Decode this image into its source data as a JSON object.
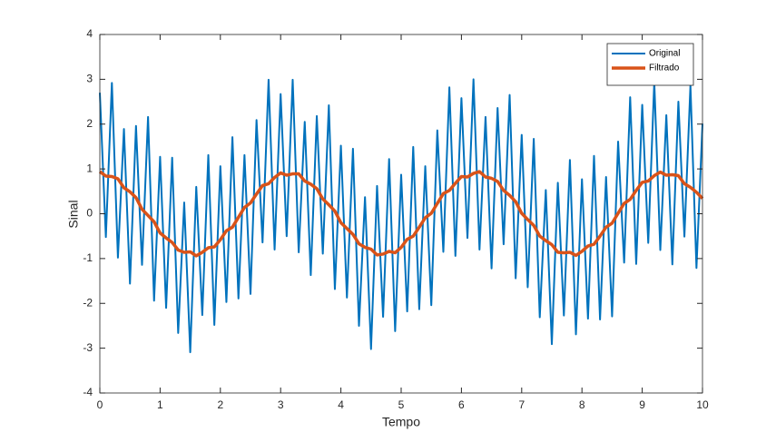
{
  "chart_data": {
    "type": "line",
    "xlabel": "Tempo",
    "ylabel": "Sinal",
    "x": [
      0,
      0.1,
      0.2,
      0.3,
      0.4,
      0.5,
      0.6,
      0.7,
      0.8,
      0.9,
      1,
      1.1,
      1.2,
      1.3,
      1.4,
      1.5,
      1.6,
      1.7,
      1.8,
      1.9,
      2,
      2.1,
      2.2,
      2.3,
      2.4,
      2.5,
      2.6,
      2.7,
      2.8,
      2.9,
      3,
      3.1,
      3.2,
      3.3,
      3.4,
      3.5,
      3.6,
      3.7,
      3.8,
      3.9,
      4,
      4.1,
      4.2,
      4.3,
      4.4,
      4.5,
      4.6,
      4.7,
      4.8,
      4.9,
      5,
      5.1,
      5.2,
      5.3,
      5.4,
      5.5,
      5.6,
      5.7,
      5.8,
      5.9,
      6,
      6.1,
      6.2,
      6.3,
      6.4,
      6.5,
      6.6,
      6.7,
      6.8,
      6.9,
      7,
      7.1,
      7.2,
      7.3,
      7.4,
      7.5,
      7.6,
      7.7,
      7.8,
      7.9,
      8,
      8.1,
      8.2,
      8.3,
      8.4,
      8.5,
      8.6,
      8.7,
      8.8,
      8.9,
      9,
      9.1,
      9.2,
      9.3,
      9.4,
      9.5,
      9.6,
      9.7,
      9.8,
      9.9,
      10
    ],
    "series": [
      {
        "name": "Original",
        "color": "#0072bd",
        "values": [
          2.7,
          -0.52,
          2.92,
          -0.98,
          1.89,
          -1.56,
          1.96,
          -1.14,
          2.16,
          -1.94,
          1.27,
          -2.1,
          1.25,
          -2.66,
          0.25,
          -3.09,
          0.6,
          -2.26,
          1.31,
          -2.48,
          1.06,
          -1.97,
          1.71,
          -1.89,
          1.31,
          -1.79,
          2.09,
          -0.64,
          2.99,
          -0.8,
          2.67,
          -0.5,
          2.99,
          -0.86,
          2.05,
          -1.37,
          2.18,
          -0.89,
          2.42,
          -1.68,
          1.52,
          -1.87,
          1.45,
          -2.5,
          0.37,
          -3.02,
          0.62,
          -2.3,
          1.22,
          -2.62,
          0.87,
          -2.18,
          1.49,
          -2.13,
          1.06,
          -2.04,
          1.86,
          -0.85,
          2.82,
          -0.94,
          2.58,
          -0.54,
          3.0,
          -0.8,
          2.16,
          -1.22,
          2.36,
          -0.68,
          2.65,
          -1.44,
          1.76,
          -1.64,
          1.67,
          -2.31,
          0.53,
          -2.91,
          0.69,
          -2.27,
          1.2,
          -2.69,
          0.77,
          -2.34,
          1.29,
          -2.36,
          0.82,
          -2.29,
          1.61,
          -1.09,
          2.6,
          -1.12,
          2.43,
          -0.65,
          2.94,
          -0.81,
          2.2,
          -1.13,
          2.5,
          -0.51,
          2.86,
          -1.21,
          2.01
        ]
      },
      {
        "name": "Filtrado",
        "color": "#d95319",
        "values": [
          0.94,
          0.84,
          0.83,
          0.78,
          0.58,
          0.49,
          0.36,
          0.1,
          -0.04,
          -0.18,
          -0.43,
          -0.54,
          -0.64,
          -0.81,
          -0.86,
          -0.85,
          -0.94,
          -0.86,
          -0.76,
          -0.74,
          -0.58,
          -0.38,
          -0.3,
          -0.08,
          0.14,
          0.24,
          0.44,
          0.63,
          0.67,
          0.81,
          0.91,
          0.86,
          0.89,
          0.89,
          0.73,
          0.66,
          0.56,
          0.33,
          0.2,
          0.06,
          -0.2,
          -0.33,
          -0.46,
          -0.67,
          -0.75,
          -0.79,
          -0.92,
          -0.9,
          -0.84,
          -0.87,
          -0.75,
          -0.57,
          -0.5,
          -0.3,
          -0.09,
          0.01,
          0.23,
          0.45,
          0.52,
          0.68,
          0.83,
          0.82,
          0.9,
          0.94,
          0.82,
          0.79,
          0.72,
          0.52,
          0.41,
          0.27,
          0.01,
          -0.13,
          -0.26,
          -0.5,
          -0.6,
          -0.69,
          -0.86,
          -0.87,
          -0.86,
          -0.93,
          -0.84,
          -0.72,
          -0.68,
          -0.5,
          -0.3,
          -0.21,
          0.01,
          0.23,
          0.32,
          0.52,
          0.7,
          0.73,
          0.85,
          0.93,
          0.86,
          0.87,
          0.85,
          0.67,
          0.59,
          0.48,
          0.34
        ]
      }
    ],
    "xlim": [
      0,
      10
    ],
    "xticks": [
      0,
      1,
      2,
      3,
      4,
      5,
      6,
      7,
      8,
      9,
      10
    ],
    "ylim": [
      -4,
      4
    ],
    "yticks": [
      -4,
      -3,
      -2,
      -1,
      0,
      1,
      2,
      3,
      4
    ],
    "legend": "northeast"
  }
}
